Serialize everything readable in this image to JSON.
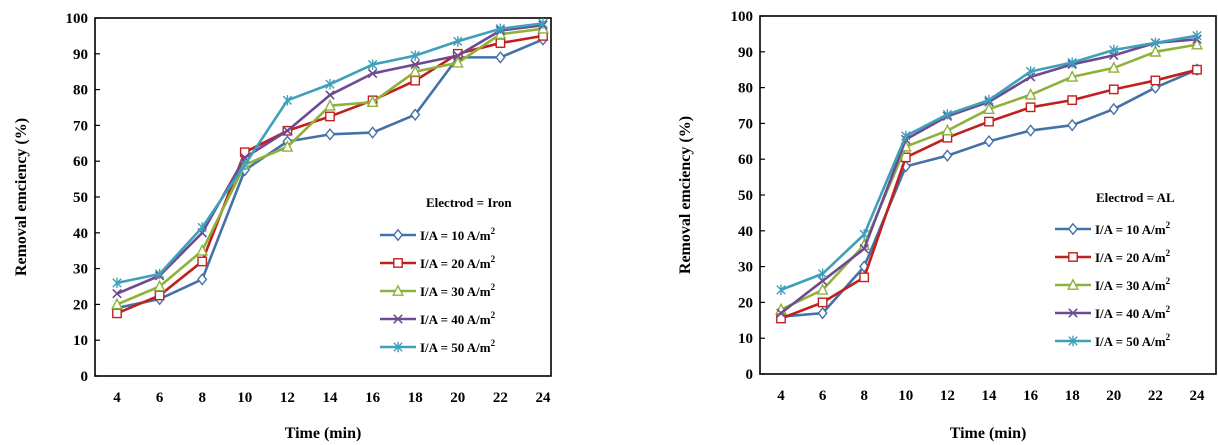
{
  "chart_data": [
    {
      "type": "line",
      "title": "",
      "xlabel": "Time (min)",
      "ylabel": "Removal emciency (%)",
      "x": [
        4,
        6,
        8,
        10,
        12,
        14,
        16,
        18,
        20,
        22,
        24
      ],
      "ylim": [
        0,
        100
      ],
      "yticks": [
        "0",
        "10",
        "20",
        "30",
        "40",
        "50",
        "60",
        "70",
        "80",
        "90",
        "100"
      ],
      "grid": false,
      "legend_title": "Electrod = Iron",
      "legend_position": "bottom-right",
      "series": [
        {
          "name": "I/A = 10 A/m",
          "sup": "2",
          "color": "#4472A8",
          "marker": "diamond",
          "values": [
            19,
            21.5,
            27,
            57.5,
            65.5,
            67.5,
            68,
            73,
            89,
            89,
            94
          ]
        },
        {
          "name": "I/A = 20 A/m",
          "sup": "2",
          "color": "#C0201E",
          "marker": "square",
          "values": [
            17.5,
            22.5,
            32,
            62.5,
            68.5,
            72.5,
            77,
            82.5,
            90,
            93,
            95
          ]
        },
        {
          "name": "I/A = 30 A/m",
          "sup": "2",
          "color": "#8FB13B",
          "marker": "triangle",
          "values": [
            20,
            25,
            35,
            59,
            64,
            75.5,
            76.5,
            85,
            87.5,
            95.5,
            97
          ]
        },
        {
          "name": "I/A = 40 A/m",
          "sup": "2",
          "color": "#6E4A93",
          "marker": "x",
          "values": [
            23,
            28,
            40,
            61,
            68.5,
            78.5,
            84.5,
            87,
            89.5,
            96.5,
            98
          ]
        },
        {
          "name": "I/A = 50 A/m",
          "sup": "2",
          "color": "#3FA0BA",
          "marker": "asterisk",
          "values": [
            26,
            28.5,
            41.5,
            59,
            77,
            81.5,
            87,
            89.5,
            93.5,
            97,
            98.5
          ]
        }
      ]
    },
    {
      "type": "line",
      "title": "",
      "xlabel": "Time (min)",
      "ylabel": "Removal emciency (%)",
      "x": [
        4,
        6,
        8,
        10,
        12,
        14,
        16,
        18,
        20,
        22,
        24
      ],
      "ylim": [
        0,
        100
      ],
      "yticks": [
        "0",
        "10",
        "20",
        "30",
        "40",
        "50",
        "60",
        "70",
        "80",
        "90",
        "100"
      ],
      "grid": false,
      "legend_title": "Electrod = AL",
      "legend_position": "bottom-right",
      "series": [
        {
          "name": "I/A = 10 A/m",
          "sup": "2",
          "color": "#4472A8",
          "marker": "diamond",
          "values": [
            16,
            17,
            30,
            58,
            61,
            65,
            68,
            69.5,
            74,
            80,
            85
          ]
        },
        {
          "name": "I/A = 20 A/m",
          "sup": "2",
          "color": "#C0201E",
          "marker": "square",
          "values": [
            15.5,
            20,
            27,
            60.5,
            66,
            70.5,
            74.5,
            76.5,
            79.5,
            82,
            85
          ]
        },
        {
          "name": "I/A = 30 A/m",
          "sup": "2",
          "color": "#8FB13B",
          "marker": "triangle",
          "values": [
            18,
            23.5,
            36,
            63.5,
            68,
            74,
            78,
            83,
            85.5,
            90,
            92
          ]
        },
        {
          "name": "I/A = 40 A/m",
          "sup": "2",
          "color": "#6E4A93",
          "marker": "x",
          "values": [
            17,
            26,
            35,
            65.5,
            72,
            76,
            83,
            86.5,
            89,
            92.5,
            93.5
          ]
        },
        {
          "name": "I/A = 50 A/m",
          "sup": "2",
          "color": "#3FA0BA",
          "marker": "asterisk",
          "values": [
            23.5,
            28,
            39,
            66.5,
            72.5,
            76.5,
            84.5,
            87,
            90.5,
            92.5,
            94.5
          ]
        }
      ]
    }
  ]
}
